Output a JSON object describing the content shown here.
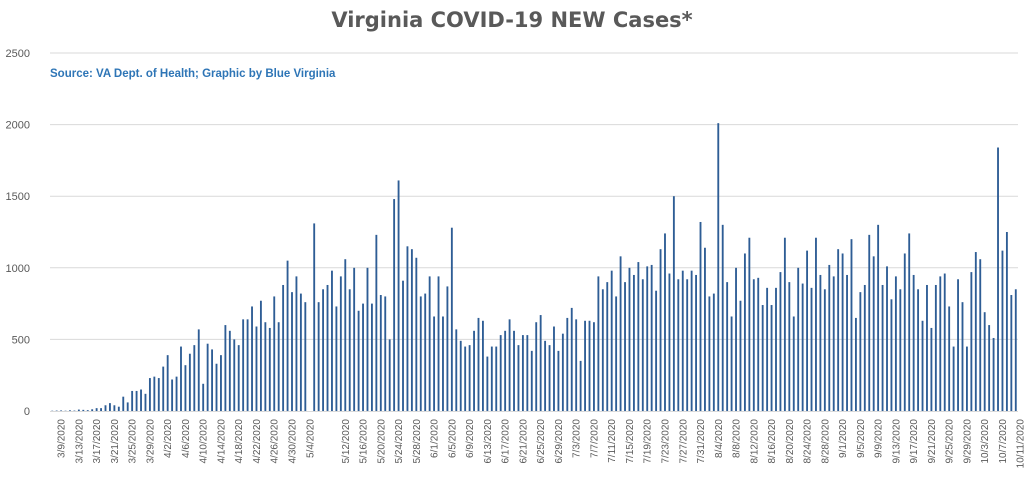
{
  "chart_data": {
    "type": "bar",
    "title": "Virginia COVID-19 NEW Cases*",
    "annotation": "Source: VA Dept. of Health; Graphic by Blue Virginia",
    "xlabel": "",
    "ylabel": "",
    "ylim": [
      0,
      2500
    ],
    "yticks": [
      0,
      500,
      1000,
      1500,
      2000,
      2500
    ],
    "grid": true,
    "legend": "none",
    "start_date": "2020-03-07",
    "end_date": "2020-10-12",
    "x_tick_labels": [
      "3/9/2020",
      "3/13/2020",
      "3/17/2020",
      "3/21/2020",
      "3/25/2020",
      "3/29/2020",
      "4/2/2020",
      "4/6/2020",
      "4/10/2020",
      "4/14/2020",
      "4/18/2020",
      "4/22/2020",
      "4/26/2020",
      "4/30/2020",
      "5/4/2020",
      "5/12/2020",
      "5/16/2020",
      "5/20/2020",
      "5/24/2020",
      "5/28/2020",
      "6/1/2020",
      "6/5/2020",
      "6/9/2020",
      "6/13/2020",
      "6/17/2020",
      "6/21/2020",
      "6/25/2020",
      "6/29/2020",
      "7/3/2020",
      "7/7/2020",
      "7/11/2020",
      "7/15/2020",
      "7/19/2020",
      "7/23/2020",
      "7/27/2020",
      "7/31/2020",
      "8/4/2020",
      "8/8/2020",
      "8/12/2020",
      "8/16/2020",
      "8/20/2020",
      "8/24/2020",
      "8/28/2020",
      "9/1/2020",
      "9/5/2020",
      "9/9/2020",
      "9/13/2020",
      "9/17/2020",
      "9/21/2020",
      "9/25/2020",
      "9/29/2020",
      "10/3/2020",
      "10/7/2020",
      "10/11/2020"
    ],
    "values": [
      2,
      3,
      4,
      2,
      5,
      3,
      10,
      8,
      6,
      12,
      20,
      20,
      40,
      55,
      40,
      30,
      100,
      60,
      140,
      140,
      150,
      120,
      230,
      240,
      230,
      310,
      390,
      220,
      240,
      450,
      320,
      400,
      460,
      570,
      190,
      470,
      430,
      330,
      390,
      600,
      560,
      500,
      460,
      640,
      640,
      730,
      590,
      770,
      620,
      580,
      800,
      620,
      880,
      1050,
      830,
      940,
      820,
      760,
      0,
      1310,
      760,
      850,
      880,
      980,
      730,
      940,
      1060,
      850,
      1000,
      700,
      750,
      1000,
      750,
      1230,
      810,
      800,
      500,
      1480,
      1610,
      910,
      1150,
      1130,
      1070,
      800,
      820,
      940,
      660,
      940,
      660,
      870,
      1280,
      570,
      490,
      450,
      460,
      560,
      650,
      630,
      380,
      450,
      450,
      530,
      560,
      640,
      560,
      460,
      530,
      530,
      420,
      620,
      670,
      490,
      460,
      590,
      420,
      540,
      650,
      720,
      640,
      350,
      630,
      630,
      620,
      940,
      850,
      900,
      980,
      800,
      1080,
      900,
      1000,
      950,
      1040,
      920,
      1010,
      1020,
      840,
      1130,
      1240,
      960,
      1500,
      920,
      980,
      920,
      980,
      950,
      1320,
      1140,
      800,
      820,
      2010,
      1300,
      900,
      660,
      1000,
      770,
      1100,
      1210,
      920,
      930,
      740,
      860,
      740,
      860,
      970,
      1210,
      900,
      660,
      1000,
      890,
      1120,
      860,
      1210,
      950,
      850,
      1020,
      940,
      1130,
      1100,
      950,
      1200,
      650,
      830,
      880,
      1230,
      1080,
      1300,
      880,
      1010,
      780,
      940,
      850,
      1100,
      1240,
      950,
      850,
      630,
      880,
      580,
      880,
      940,
      960,
      730,
      450,
      920,
      760,
      450,
      970,
      1110,
      1060,
      690,
      600,
      510,
      1840,
      1120,
      1250,
      810,
      850
    ]
  },
  "colors": {
    "bar": "#2e5d95",
    "grid": "#d9d9d9",
    "axis_text": "#595959",
    "source_text": "#2e75b6",
    "title": "#595959"
  }
}
